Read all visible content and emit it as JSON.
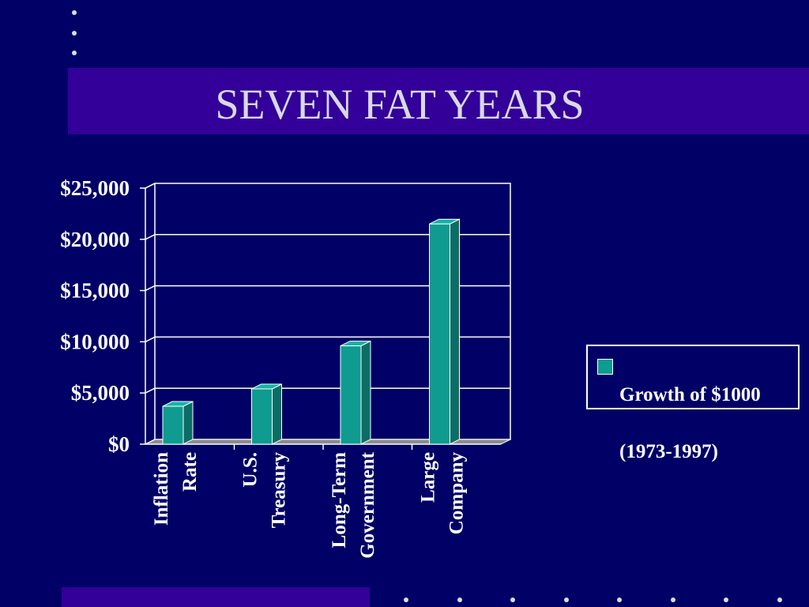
{
  "slide": {
    "title": "SEVEN FAT YEARS",
    "colors": {
      "background": "#000066",
      "band": "#330099",
      "bar": "#0f9b90",
      "text": "#ffffff"
    }
  },
  "chart_data": {
    "type": "bar",
    "categories": [
      [
        "Inflation",
        "Rate"
      ],
      [
        "U.S.",
        "Treasury"
      ],
      [
        "Long-Term",
        "Government"
      ],
      [
        "Large",
        "Company"
      ]
    ],
    "series": [
      {
        "name": "Growth of $1000 (1973-1997)",
        "values": [
          3700,
          5400,
          9600,
          21500
        ]
      }
    ],
    "ylim": [
      0,
      25000
    ],
    "yticks": [
      "$0",
      "$5,000",
      "$10,000",
      "$15,000",
      "$20,000",
      "$25,000"
    ],
    "grid": true,
    "legend": {
      "position": "right",
      "line1": "Growth of $1000",
      "line2": "(1973-1997)"
    }
  }
}
